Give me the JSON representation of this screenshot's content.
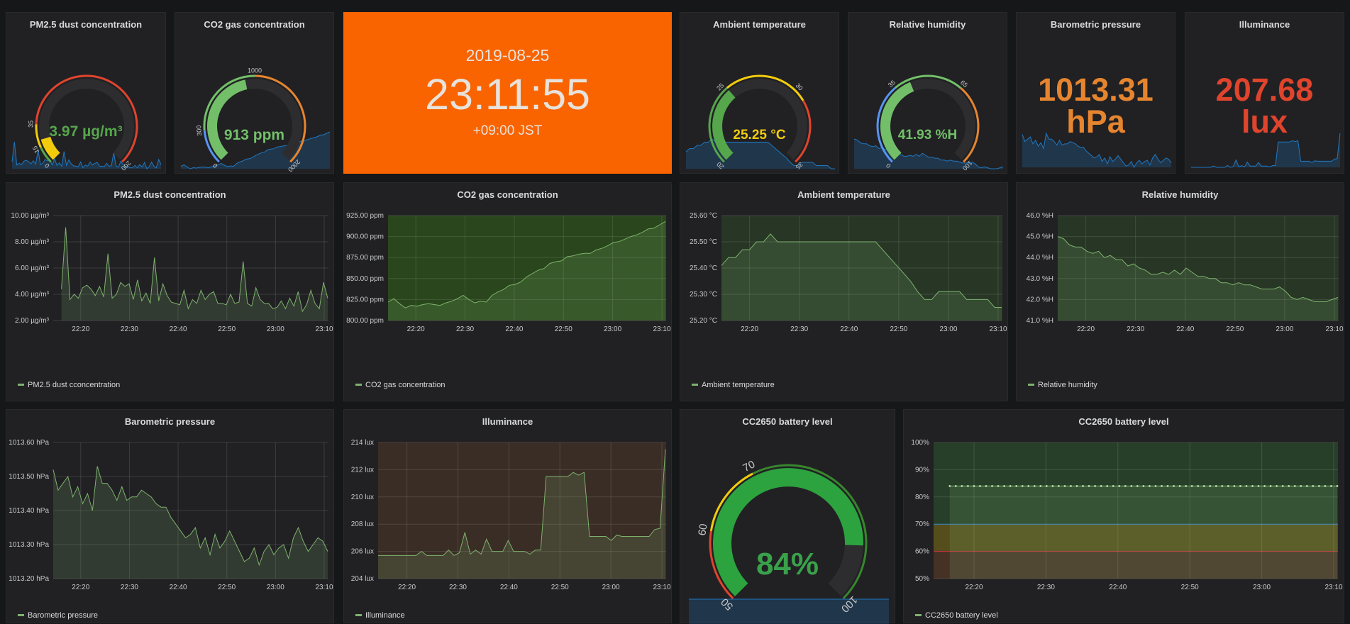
{
  "colors": {
    "line": "#7eb26d",
    "spark": "#1f78c1",
    "green": "#56a64b",
    "orange": "#e6852f",
    "red": "#e0442c",
    "yellow": "#f2cc0c",
    "blue": "#5794f2",
    "clock_bg": "#f96401"
  },
  "stats": {
    "pm25": {
      "title": "PM2.5 dust concentration",
      "value": "3.97 µg/m³",
      "gauge_fraction": 0.106,
      "tick_labels": [
        "0",
        "15",
        "35",
        "200"
      ]
    },
    "co2": {
      "title": "CO2 gas concentration",
      "value": "913 ppm",
      "gauge_fraction": 0.457,
      "tick_labels": [
        "0",
        "300",
        "1000",
        "2000"
      ]
    },
    "clock": {
      "date": "2019-08-25",
      "time": "23:11:55",
      "tz": "+09:00 JST"
    },
    "temp": {
      "title": "Ambient temperature",
      "value": "25.25 °C",
      "gauge_fraction": 0.35,
      "tick_labels": [
        "20",
        "25",
        "30",
        "35"
      ]
    },
    "humidity": {
      "title": "Relative humidity",
      "value": "41.93 %H",
      "gauge_fraction": 0.419,
      "tick_labels": [
        "0",
        "35",
        "65",
        "100"
      ]
    },
    "pressure": {
      "title": "Barometric pressure",
      "value_line1": "1013.31",
      "value_line2": "hPa"
    },
    "illuminance": {
      "title": "Illuminance",
      "value_line1": "207.68",
      "value_line2": "lux"
    },
    "battery": {
      "title": "CC2650 battery level",
      "value": "84%",
      "gauge_fraction": 0.84,
      "tick_labels": [
        "50",
        "60",
        "70",
        "100"
      ]
    }
  },
  "chart_data": [
    {
      "type": "line",
      "title": "PM2.5 dust concentration",
      "ylim": [
        2,
        10
      ],
      "yticks": [
        "2.00 µg/m³",
        "4.00 µg/m³",
        "6.00 µg/m³",
        "8.00 µg/m³",
        "10.00 µg/m³"
      ],
      "xticks": [
        "22:20",
        "22:30",
        "22:40",
        "22:50",
        "23:00",
        "23:10"
      ],
      "legend": "PM2.5 dust cconcentration",
      "series": [
        {
          "name": "PM2.5 dust cconcentration",
          "values": [
            4.4,
            9.1,
            3.6,
            4.0,
            3.7,
            4.5,
            4.7,
            4.4,
            3.9,
            4.6,
            3.8,
            7.1,
            3.7,
            4.0,
            4.9,
            4.6,
            4.8,
            3.6,
            5.1,
            3.5,
            4.1,
            3.3,
            6.8,
            3.5,
            4.8,
            3.9,
            3.4,
            3.3,
            3.2,
            4.3,
            2.9,
            3.6,
            3.3,
            4.3,
            3.6,
            4.0,
            4.2,
            3.3,
            3.3,
            3.2,
            4.0,
            3.3,
            3.4,
            6.5,
            3.3,
            3.1,
            4.5,
            3.6,
            3.3,
            3.3,
            2.9,
            3.0,
            3.5,
            2.9,
            3.7,
            3.1,
            4.2,
            2.7,
            3.2,
            4.3,
            3.3,
            2.9,
            4.9,
            3.7
          ]
        }
      ]
    },
    {
      "type": "line",
      "title": "CO2 gas concentration",
      "ylim": [
        800,
        925
      ],
      "yticks": [
        "800.00 ppm",
        "825.00 ppm",
        "850.00 ppm",
        "875.00 ppm",
        "900.00 ppm",
        "925.00 ppm"
      ],
      "xticks": [
        "22:20",
        "22:30",
        "22:40",
        "22:50",
        "23:00",
        "23:10"
      ],
      "legend": "CO2 gas concentration",
      "series": [
        {
          "name": "CO2 gas concentration",
          "values": [
            822,
            826,
            820,
            815,
            818,
            817,
            819,
            820,
            819,
            818,
            821,
            823,
            826,
            830,
            825,
            821,
            823,
            822,
            830,
            834,
            837,
            842,
            843,
            846,
            852,
            856,
            860,
            862,
            868,
            870,
            871,
            876,
            877,
            879,
            880,
            880,
            884,
            886,
            889,
            893,
            894,
            897,
            900,
            902,
            905,
            909,
            910,
            914,
            918
          ]
        }
      ]
    },
    {
      "type": "line",
      "title": "Ambient temperature",
      "ylim": [
        25.2,
        25.6
      ],
      "yticks": [
        "25.20 °C",
        "25.30 °C",
        "25.40 °C",
        "25.50 °C",
        "25.60 °C"
      ],
      "xticks": [
        "22:20",
        "22:30",
        "22:40",
        "22:50",
        "23:00",
        "23:10"
      ],
      "legend": "Ambient temperature",
      "series": [
        {
          "name": "Ambient temperature",
          "values": [
            25.41,
            25.44,
            25.44,
            25.47,
            25.47,
            25.5,
            25.5,
            25.53,
            25.5,
            25.5,
            25.5,
            25.5,
            25.5,
            25.5,
            25.5,
            25.5,
            25.5,
            25.5,
            25.5,
            25.5,
            25.5,
            25.5,
            25.5,
            25.47,
            25.44,
            25.41,
            25.38,
            25.35,
            25.31,
            25.28,
            25.28,
            25.31,
            25.31,
            25.31,
            25.31,
            25.28,
            25.28,
            25.28,
            25.28,
            25.25,
            25.25
          ]
        }
      ]
    },
    {
      "type": "line",
      "title": "Relative humidity",
      "ylim": [
        41,
        46
      ],
      "yticks": [
        "41.0 %H",
        "42.0 %H",
        "43.0 %H",
        "44.0 %H",
        "45.0 %H",
        "46.0 %H"
      ],
      "xticks": [
        "22:20",
        "22:30",
        "22:40",
        "22:50",
        "23:00",
        "23:10"
      ],
      "legend": "Relative humidity",
      "series": [
        {
          "name": "Relative humidity",
          "values": [
            45.0,
            44.9,
            44.6,
            44.5,
            44.5,
            44.3,
            44.2,
            44.3,
            44.0,
            44.1,
            43.9,
            43.9,
            43.6,
            43.7,
            43.5,
            43.4,
            43.2,
            43.2,
            43.3,
            43.2,
            43.4,
            43.2,
            43.5,
            43.3,
            43.1,
            43.1,
            43.0,
            43.0,
            42.8,
            42.8,
            42.7,
            42.8,
            42.7,
            42.7,
            42.6,
            42.5,
            42.5,
            42.5,
            42.6,
            42.4,
            42.1,
            42.0,
            42.1,
            42.0,
            41.9,
            41.9,
            41.9,
            42.0,
            42.1
          ]
        }
      ]
    },
    {
      "type": "line",
      "title": "Barometric pressure",
      "ylim": [
        1013.2,
        1013.6
      ],
      "yticks": [
        "1013.20 hPa",
        "1013.30 hPa",
        "1013.40 hPa",
        "1013.50 hPa",
        "1013.60 hPa"
      ],
      "xticks": [
        "22:20",
        "22:30",
        "22:40",
        "22:50",
        "23:00",
        "23:10"
      ],
      "legend": "Barometric pressure",
      "series": [
        {
          "name": "Barometric pressure",
          "values": [
            1013.52,
            1013.46,
            1013.48,
            1013.5,
            1013.44,
            1013.47,
            1013.42,
            1013.45,
            1013.4,
            1013.53,
            1013.48,
            1013.48,
            1013.46,
            1013.43,
            1013.47,
            1013.43,
            1013.44,
            1013.44,
            1013.46,
            1013.45,
            1013.44,
            1013.42,
            1013.41,
            1013.41,
            1013.38,
            1013.36,
            1013.34,
            1013.32,
            1013.33,
            1013.35,
            1013.29,
            1013.32,
            1013.27,
            1013.33,
            1013.29,
            1013.31,
            1013.34,
            1013.31,
            1013.28,
            1013.25,
            1013.26,
            1013.29,
            1013.24,
            1013.28,
            1013.3,
            1013.27,
            1013.29,
            1013.3,
            1013.26,
            1013.32,
            1013.35,
            1013.31,
            1013.28,
            1013.3,
            1013.32,
            1013.31,
            1013.28
          ]
        }
      ]
    },
    {
      "type": "line",
      "title": "Illuminance",
      "ylim": [
        204,
        214
      ],
      "yticks": [
        "204 lux",
        "206 lux",
        "208 lux",
        "210 lux",
        "212 lux",
        "214 lux"
      ],
      "xticks": [
        "22:20",
        "22:30",
        "22:40",
        "22:50",
        "23:00",
        "23:10"
      ],
      "legend": "Illuminance",
      "series": [
        {
          "name": "Illuminance",
          "values": [
            205.7,
            205.7,
            205.7,
            205.7,
            205.7,
            205.7,
            205.7,
            205.7,
            206.0,
            205.7,
            205.7,
            205.7,
            205.7,
            206.1,
            205.7,
            205.9,
            207.4,
            205.8,
            206.1,
            205.8,
            206.9,
            206.0,
            206.0,
            206.0,
            206.8,
            206.0,
            206.0,
            206.0,
            205.8,
            206.1,
            206.1,
            211.5,
            211.5,
            211.5,
            211.5,
            211.5,
            211.8,
            211.6,
            211.8,
            207.1,
            207.1,
            207.1,
            207.1,
            206.8,
            207.2,
            207.1,
            207.1,
            207.1,
            207.1,
            207.1,
            207.1,
            207.6,
            207.7,
            213.5
          ]
        }
      ]
    },
    {
      "type": "line",
      "title": "CC2650 battery level",
      "ylim": [
        50,
        100
      ],
      "yticks": [
        "50%",
        "60%",
        "70%",
        "80%",
        "90%",
        "100%"
      ],
      "xticks": [
        "22:20",
        "22:30",
        "22:40",
        "22:50",
        "23:00",
        "23:10"
      ],
      "legend": "CC2650 battery level",
      "thresholds": [
        60,
        70
      ],
      "series": [
        {
          "name": "CC2650 battery level",
          "values": [
            84,
            84,
            84,
            84,
            84,
            84,
            84,
            84,
            84,
            84,
            84,
            84,
            84,
            84,
            84,
            84,
            84,
            84,
            84,
            84,
            84,
            84,
            84,
            84,
            84,
            84,
            84,
            84,
            84,
            84,
            84,
            84,
            84,
            84,
            84,
            84,
            84,
            84,
            84,
            84,
            84,
            84,
            84,
            84,
            84,
            84,
            84,
            84,
            84,
            84,
            84,
            84,
            84,
            84,
            84,
            84,
            84,
            84,
            84,
            84,
            84,
            84,
            84,
            84,
            84
          ]
        }
      ]
    }
  ]
}
